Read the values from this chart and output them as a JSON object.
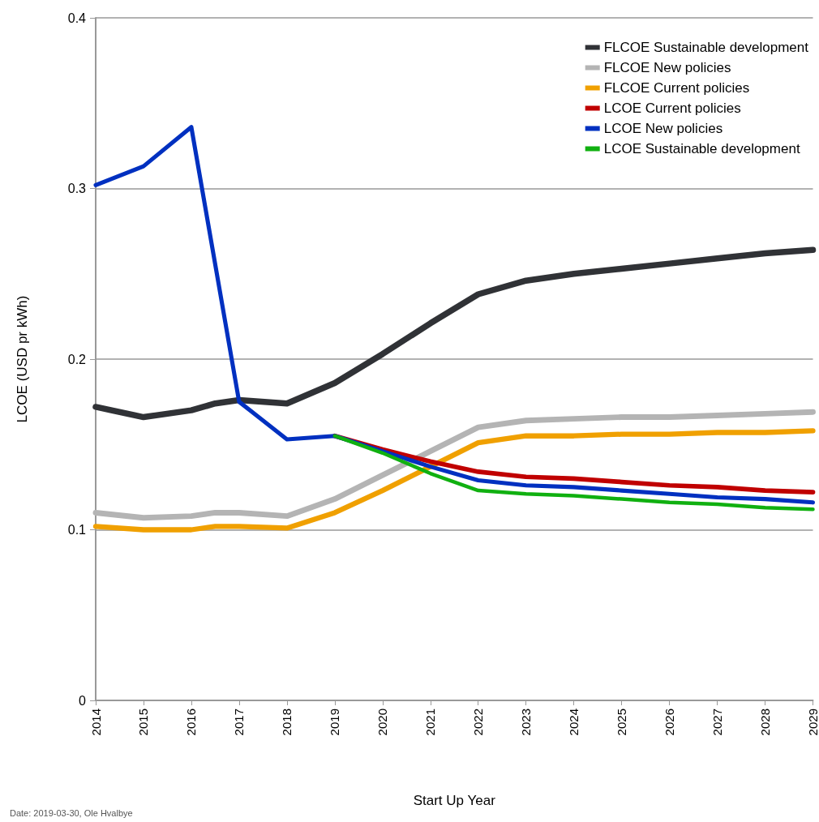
{
  "chart_data": {
    "type": "line",
    "xlabel": "Start Up Year",
    "ylabel": "LCOE (USD pr kWh)",
    "annotations": [
      "Date: 2019-03-30, Ole Hvalbye"
    ],
    "xlim": [
      2014,
      2029
    ],
    "xticks": [
      2014,
      2015,
      2016,
      2017,
      2018,
      2019,
      2020,
      2021,
      2022,
      2023,
      2024,
      2025,
      2026,
      2027,
      2028,
      2029
    ],
    "ylim": [
      0,
      0.4
    ],
    "yticks": [
      0,
      0.1,
      0.2,
      0.3,
      0.4
    ],
    "grid": "y",
    "legend": "top right",
    "marker": "none",
    "line_style": "solid",
    "series": [
      {
        "name": "FLCOE Sustainable development",
        "color": "#303236",
        "x": [
          2014,
          2015,
          2016,
          2016.5,
          2017,
          2018,
          2019,
          2020,
          2021,
          2022,
          2023,
          2024,
          2025,
          2026,
          2027,
          2028,
          2029
        ],
        "values": [
          0.172,
          0.166,
          0.17,
          0.174,
          0.176,
          0.174,
          0.186,
          0.203,
          0.221,
          0.238,
          0.246,
          0.25,
          0.253,
          0.256,
          0.259,
          0.262,
          0.264
        ]
      },
      {
        "name": "FLCOE New policies",
        "color": "#b4b4b4",
        "x": [
          2014,
          2015,
          2016,
          2016.5,
          2017,
          2018,
          2019,
          2020,
          2021,
          2022,
          2023,
          2024,
          2025,
          2026,
          2027,
          2028,
          2029
        ],
        "values": [
          0.11,
          0.107,
          0.108,
          0.11,
          0.11,
          0.108,
          0.118,
          0.132,
          0.146,
          0.16,
          0.164,
          0.165,
          0.166,
          0.166,
          0.167,
          0.168,
          0.169
        ]
      },
      {
        "name": "FLCOE Current policies",
        "color": "#f0a000",
        "x": [
          2014,
          2015,
          2016,
          2016.5,
          2017,
          2018,
          2019,
          2020,
          2021,
          2022,
          2023,
          2024,
          2025,
          2026,
          2027,
          2028,
          2029
        ],
        "values": [
          0.102,
          0.1,
          0.1,
          0.102,
          0.102,
          0.101,
          0.11,
          0.123,
          0.137,
          0.151,
          0.155,
          0.155,
          0.156,
          0.156,
          0.157,
          0.157,
          0.158
        ]
      },
      {
        "name": "LCOE Current policies",
        "color": "#c00000",
        "x": [
          2019,
          2020,
          2021,
          2022,
          2023,
          2024,
          2025,
          2026,
          2027,
          2028,
          2029
        ],
        "values": [
          0.155,
          0.147,
          0.14,
          0.134,
          0.131,
          0.13,
          0.128,
          0.126,
          0.125,
          0.123,
          0.122
        ]
      },
      {
        "name": "LCOE New policies",
        "color": "#0030c0",
        "x": [
          2014,
          2015,
          2016,
          2017,
          2018,
          2019,
          2020,
          2021,
          2022,
          2023,
          2024,
          2025,
          2026,
          2027,
          2028,
          2029
        ],
        "values": [
          0.302,
          0.313,
          0.336,
          0.175,
          0.153,
          0.155,
          0.146,
          0.137,
          0.129,
          0.126,
          0.125,
          0.123,
          0.121,
          0.119,
          0.118,
          0.116
        ]
      },
      {
        "name": "LCOE Sustainable development",
        "color": "#10b010",
        "x": [
          2019,
          2020,
          2021,
          2022,
          2023,
          2024,
          2025,
          2026,
          2027,
          2028,
          2029
        ],
        "values": [
          0.155,
          0.145,
          0.133,
          0.123,
          0.121,
          0.12,
          0.118,
          0.116,
          0.115,
          0.113,
          0.112
        ]
      }
    ]
  }
}
